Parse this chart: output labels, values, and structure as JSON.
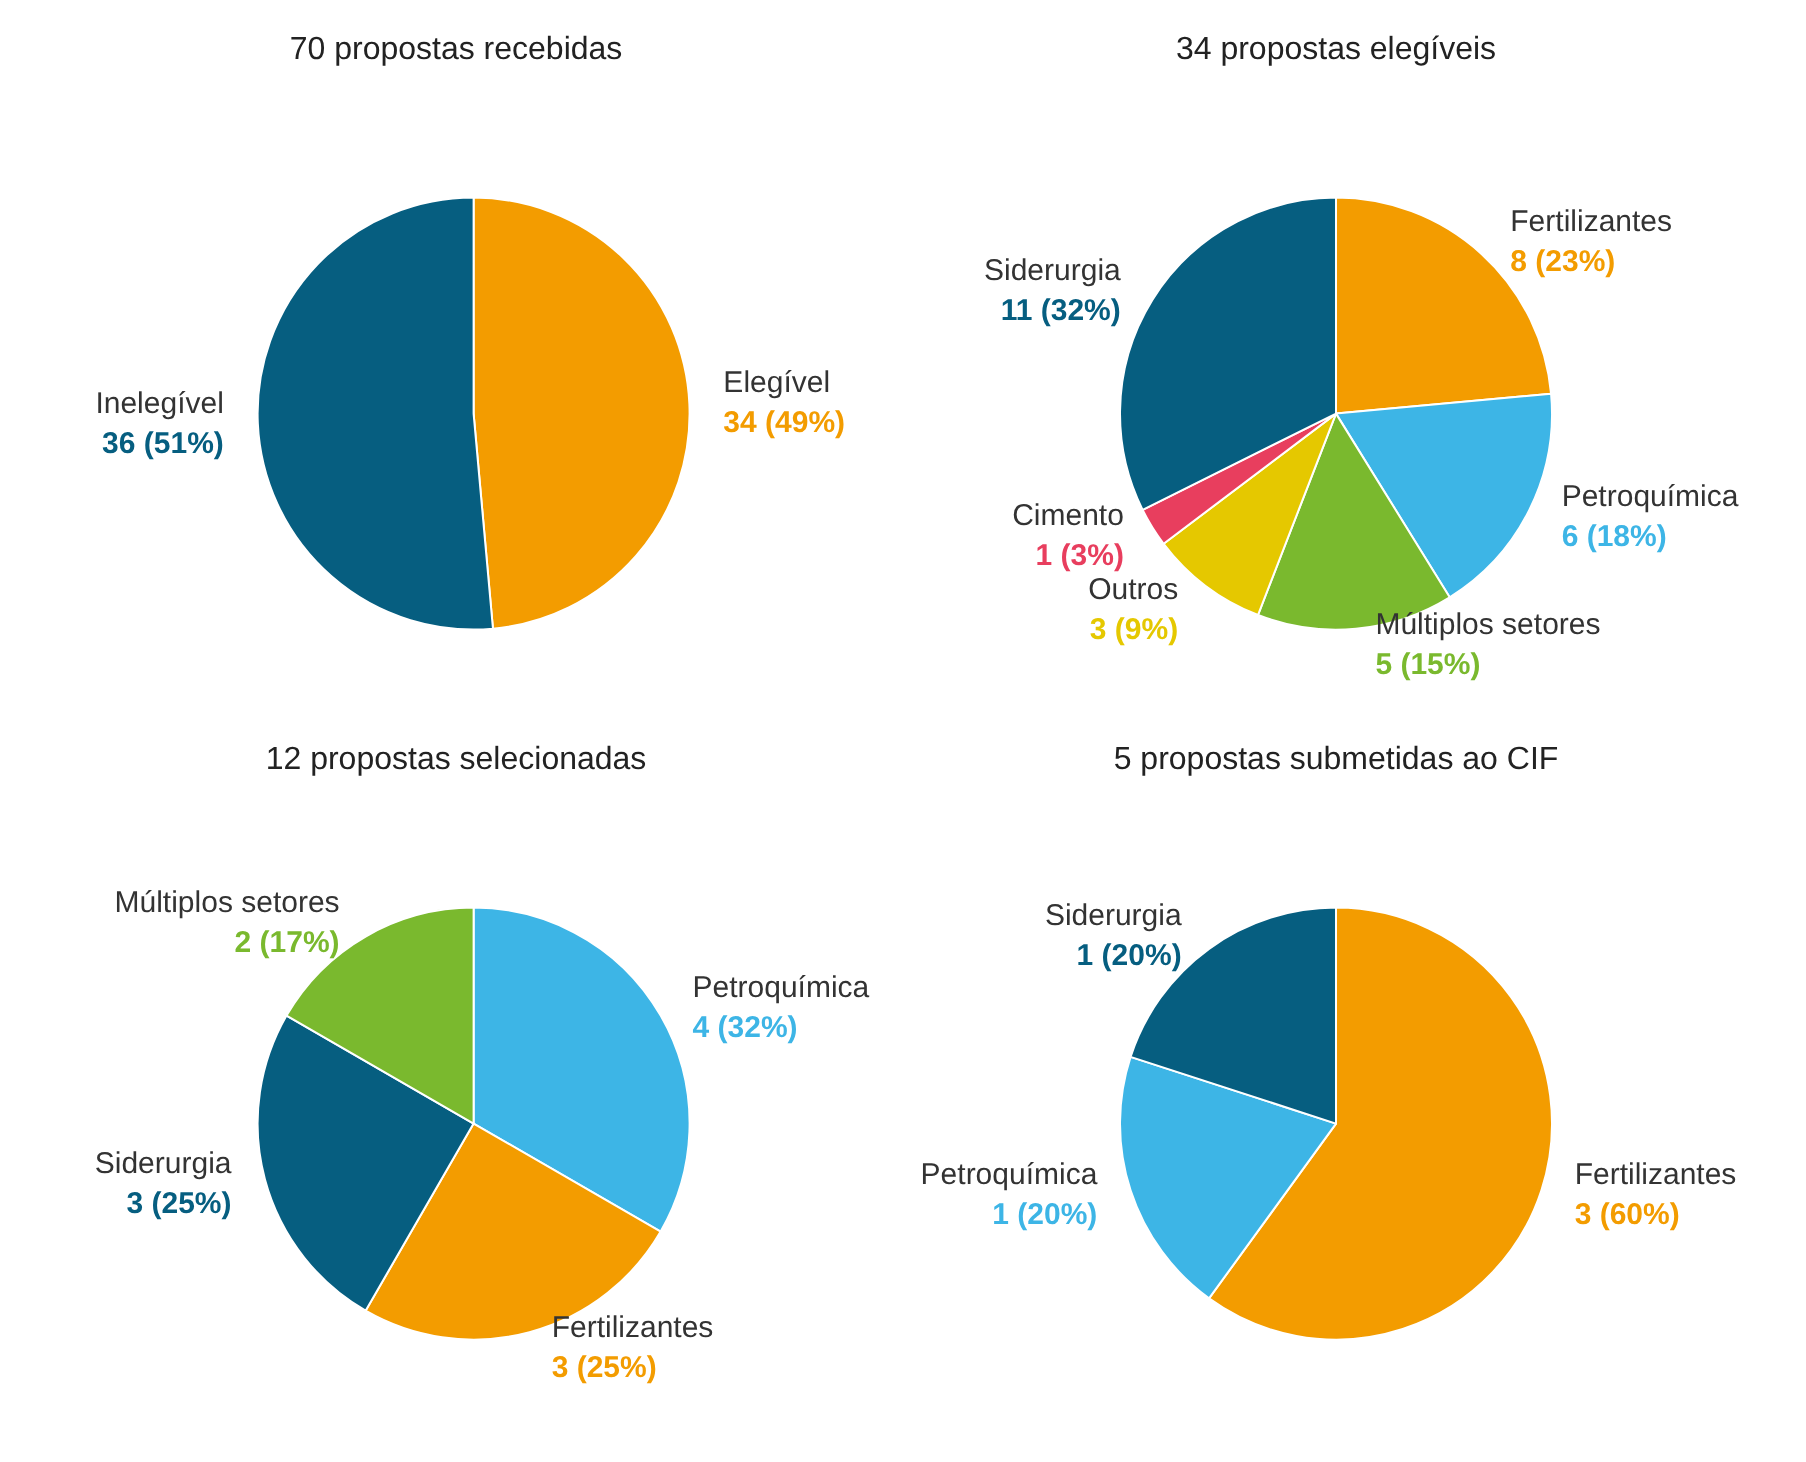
{
  "chart_data": [
    {
      "type": "pie",
      "title": "70 propostas recebidas",
      "categories": [
        "Elegível",
        "Inelegível"
      ],
      "values": [
        34,
        36
      ],
      "colors": [
        "#f39c00",
        "#065e80"
      ],
      "value_labels": [
        "34 (49%)",
        "36 (51%)"
      ]
    },
    {
      "type": "pie",
      "title": "34 propostas elegíveis",
      "categories": [
        "Fertilizantes",
        "Petroquímica",
        "Múltiplos setores",
        "Outros",
        "Cimento",
        "Siderurgia"
      ],
      "values": [
        8,
        6,
        5,
        3,
        1,
        11
      ],
      "colors": [
        "#f39c00",
        "#3db5e6",
        "#7ab92e",
        "#e5c800",
        "#e83e5e",
        "#065e80"
      ],
      "value_labels": [
        "8 (23%)",
        "6 (18%)",
        "5 (15%)",
        "3 (9%)",
        "1 (3%)",
        "11 (32%)"
      ]
    },
    {
      "type": "pie",
      "title": "12 propostas selecionadas",
      "categories": [
        "Petroquímica",
        "Fertilizantes",
        "Siderurgia",
        "Múltiplos setores"
      ],
      "values": [
        4,
        3,
        3,
        2
      ],
      "colors": [
        "#3db5e6",
        "#f39c00",
        "#065e80",
        "#7ab92e"
      ],
      "value_labels": [
        "4 (32%)",
        "3 (25%)",
        "3 (25%)",
        "2 (17%)"
      ]
    },
    {
      "type": "pie",
      "title": "5 propostas submetidas ao CIF",
      "categories": [
        "Fertilizantes",
        "Petroquímica",
        "Siderurgia"
      ],
      "values": [
        3,
        1,
        1
      ],
      "colors": [
        "#f39c00",
        "#3db5e6",
        "#065e80"
      ],
      "value_labels": [
        "3 (60%)",
        "1 (20%)",
        "1 (20%)"
      ]
    }
  ]
}
